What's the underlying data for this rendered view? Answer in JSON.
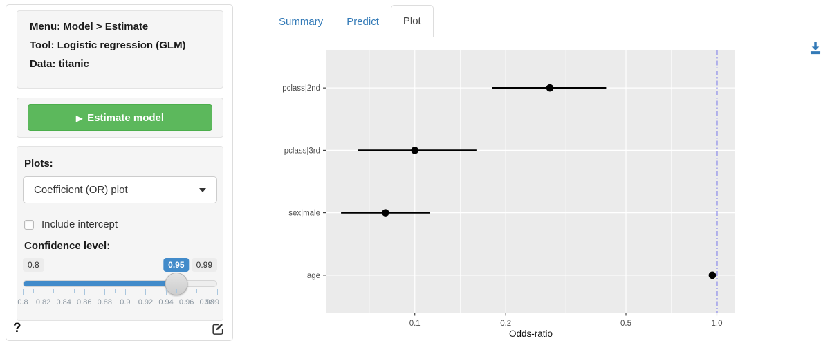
{
  "sidebar": {
    "info": {
      "menu": "Menu: Model > Estimate",
      "tool": "Tool: Logistic regression (GLM)",
      "data": "Data: titanic"
    },
    "estimate": {
      "icon": "▶",
      "label": "Estimate model"
    },
    "plots": {
      "label": "Plots:",
      "selected": "Coefficient (OR) plot",
      "include_intercept": "Include intercept",
      "intercept_checked": false,
      "confidence_label": "Confidence level:"
    },
    "slider": {
      "min": 0.8,
      "max": 0.99,
      "step": 0.01,
      "value": 0.95,
      "min_label": "0.8",
      "value_label": "0.95",
      "max_label": "0.99",
      "tick_count": 20,
      "tick_labels": [
        "0.8",
        "0.82",
        "0.84",
        "0.86",
        "0.88",
        "0.9",
        "0.92",
        "0.94",
        "0.96",
        "0.98",
        "0.99"
      ]
    },
    "help_icon": "?"
  },
  "tabs": [
    {
      "label": "Summary",
      "active": false
    },
    {
      "label": "Predict",
      "active": false
    },
    {
      "label": "Plot",
      "active": true
    }
  ],
  "colors": {
    "button_green": "#5cb85c",
    "button_green_border": "#4cae4c",
    "link_blue": "#337ab7",
    "slider_blue": "#428bca",
    "panel_bg": "#EBEBEB",
    "grid": "#FFFFFF",
    "refline_blue": "#2A2AE8",
    "point_black": "#000000",
    "axis_text": "#4D4D4D"
  },
  "chart_data": {
    "type": "scatter",
    "subtype": "coefficient-odds-ratio-dot-interval",
    "title": "",
    "xlabel": "Odds-ratio",
    "ylabel": "",
    "x_scale": "log10",
    "x_range": [
      0.051,
      1.15
    ],
    "x_ticks": [
      0.1,
      0.2,
      0.5,
      1.0
    ],
    "x_tick_labels": [
      "0.1",
      "0.2",
      "0.5",
      "1.0"
    ],
    "x_minor_gridlines": [
      0.0707,
      0.1414,
      0.3162,
      0.7071
    ],
    "grid": "on",
    "legend": "none",
    "reference_line": {
      "x": 1.0,
      "style": "longdash",
      "color": "blue"
    },
    "categories": [
      "pclass|2nd",
      "pclass|3rd",
      "sex|male",
      "age"
    ],
    "coefficients": [
      {
        "label": "pclass|2nd",
        "or": 0.28,
        "ci_low": 0.18,
        "ci_high": 0.43
      },
      {
        "label": "pclass|3rd",
        "or": 0.1,
        "ci_low": 0.065,
        "ci_high": 0.16
      },
      {
        "label": "sex|male",
        "or": 0.08,
        "ci_low": 0.057,
        "ci_high": 0.112
      },
      {
        "label": "age",
        "or": 0.966,
        "ci_low": 0.958,
        "ci_high": 0.974
      }
    ]
  }
}
